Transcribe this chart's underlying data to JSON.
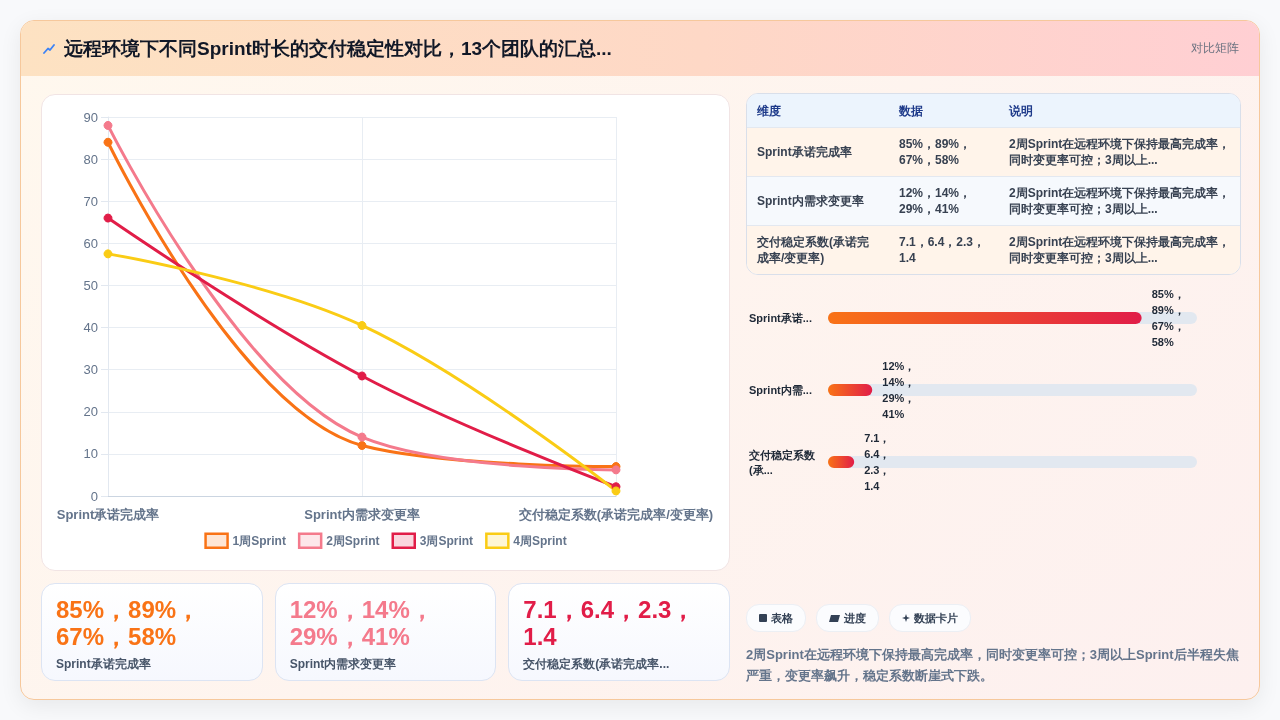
{
  "chart_data": [
    {
      "type": "other",
      "title": "远程环境下不同Sprint时长的交付稳定性对比，13个团队的汇总...",
      "subtitle": "对比矩阵"
    },
    {
      "type": "line",
      "categories": [
        "Sprint承诺完成率",
        "Sprint内需求变更率",
        "交付稳定系数(承诺完成率/变更率)"
      ],
      "series": [
        {
          "name": "1周Sprint",
          "color": "#f97316",
          "values": [
            84,
            12,
            7
          ]
        },
        {
          "name": "2周Sprint",
          "color": "#f47a8c",
          "values": [
            88,
            14,
            6.2
          ]
        },
        {
          "name": "3周Sprint",
          "color": "#e11d48",
          "values": [
            66,
            28.5,
            2.2
          ]
        },
        {
          "name": "4周Sprint",
          "color": "#facc15",
          "values": [
            57.5,
            40.5,
            1.2
          ]
        }
      ],
      "ylim": [
        0,
        90
      ],
      "yticks": [
        0,
        10,
        20,
        30,
        40,
        50,
        60,
        70,
        80,
        90
      ],
      "grid": true,
      "legend": "bottom",
      "marker": "circle",
      "line_style": "solid"
    },
    {
      "type": "other",
      "annotations": [
        "维度",
        "数据",
        "说明",
        "Sprint承诺完成率",
        "85%，89%，67%，58%",
        "2周Sprint在远程环境下保持最高完成率，同时变更率可控；3周以上...",
        "Sprint内需求变更率",
        "12%，14%，29%，41%",
        "2周Sprint在远程环境下保持最高完成率，同时变更率可控；3周以上...",
        "交付稳定系数(承诺完成率/变更率)",
        "7.1，6.4，2.3，1.4",
        "2周Sprint在远程环境下保持最高完成率，同时变更率可控；3周以上..."
      ]
    },
    {
      "type": "bar",
      "orientation": "horizontal",
      "categories": [
        "Sprint承诺...",
        "Sprint内需...",
        "交付稳定系数(承..."
      ],
      "values": [
        85,
        12,
        7.1
      ],
      "value_labels": [
        "85%，89%，67%，58%",
        "12%，14%，29%，41%",
        "7.1，6.4，2.3，1.4"
      ],
      "color": "#e11d48",
      "tick_labels": "y"
    },
    {
      "type": "other",
      "annotations": [
        "85%，89%，67%，58%",
        "Sprint承诺完成率",
        "12%，14%，29%，41%",
        "Sprint内需求变更率",
        "7.1，6.4，2.3，1.4",
        "交付稳定系数(承诺完成率..."
      ],
      "colors": [
        "#f97316",
        "#f47a8c",
        "#e11d48"
      ]
    },
    {
      "type": "other",
      "annotations": [
        "表格",
        "进度",
        "数据卡片",
        "2周Sprint在远程环境下保持最高完成率，同时变更率可控；3周以上Sprint后半程失焦严重，变更率飙升，稳定系数断崖式下跌。"
      ]
    }
  ]
}
